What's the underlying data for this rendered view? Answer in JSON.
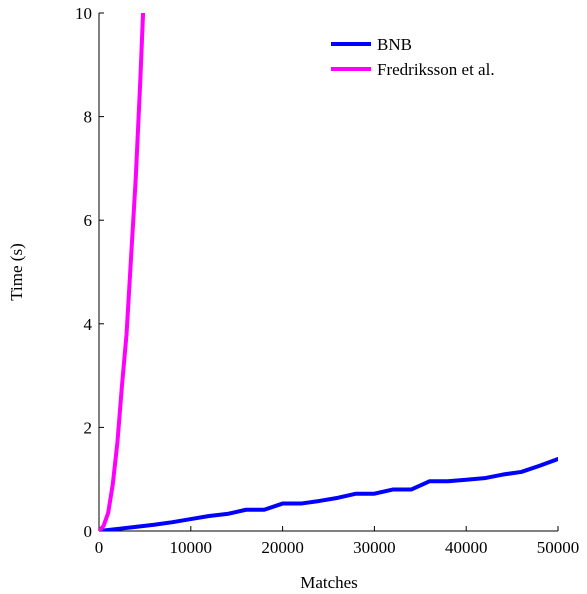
{
  "chart_data": {
    "type": "line",
    "title": "",
    "xlabel": "Matches",
    "ylabel": "Time (s)",
    "xlim": [
      0,
      50000
    ],
    "ylim": [
      0,
      10
    ],
    "x_ticks": [
      0,
      10000,
      20000,
      30000,
      40000,
      50000
    ],
    "y_ticks": [
      0,
      2,
      4,
      6,
      8,
      10
    ],
    "x_tick_labels": [
      "0",
      "10000",
      "20000",
      "30000",
      "40000",
      "50000"
    ],
    "y_tick_labels": [
      "0",
      "2",
      "4",
      "6",
      "8",
      "10"
    ],
    "grid": false,
    "legend": {
      "position": "top-right"
    },
    "series": [
      {
        "name": "BNB",
        "color": "#0000ff",
        "x": [
          0,
          2000,
          4000,
          6000,
          8000,
          10000,
          12000,
          14000,
          16000,
          18000,
          20000,
          22000,
          24000,
          26000,
          28000,
          30000,
          32000,
          34000,
          36000,
          38000,
          40000,
          42000,
          44000,
          46000,
          48000,
          50000
        ],
        "y": [
          0,
          0.04,
          0.08,
          0.12,
          0.17,
          0.23,
          0.29,
          0.33,
          0.41,
          0.41,
          0.53,
          0.53,
          0.58,
          0.64,
          0.72,
          0.72,
          0.8,
          0.8,
          0.96,
          0.96,
          0.99,
          1.02,
          1.09,
          1.14,
          1.26,
          1.39
        ]
      },
      {
        "name": "Fredriksson et al.",
        "color": "#ff00ff",
        "x": [
          0,
          500,
          1000,
          1500,
          2000,
          2500,
          3000,
          3500,
          4000,
          4500,
          4800
        ],
        "y": [
          0,
          0.1,
          0.35,
          0.9,
          1.7,
          2.8,
          3.8,
          5.3,
          6.8,
          8.7,
          10
        ]
      }
    ]
  }
}
